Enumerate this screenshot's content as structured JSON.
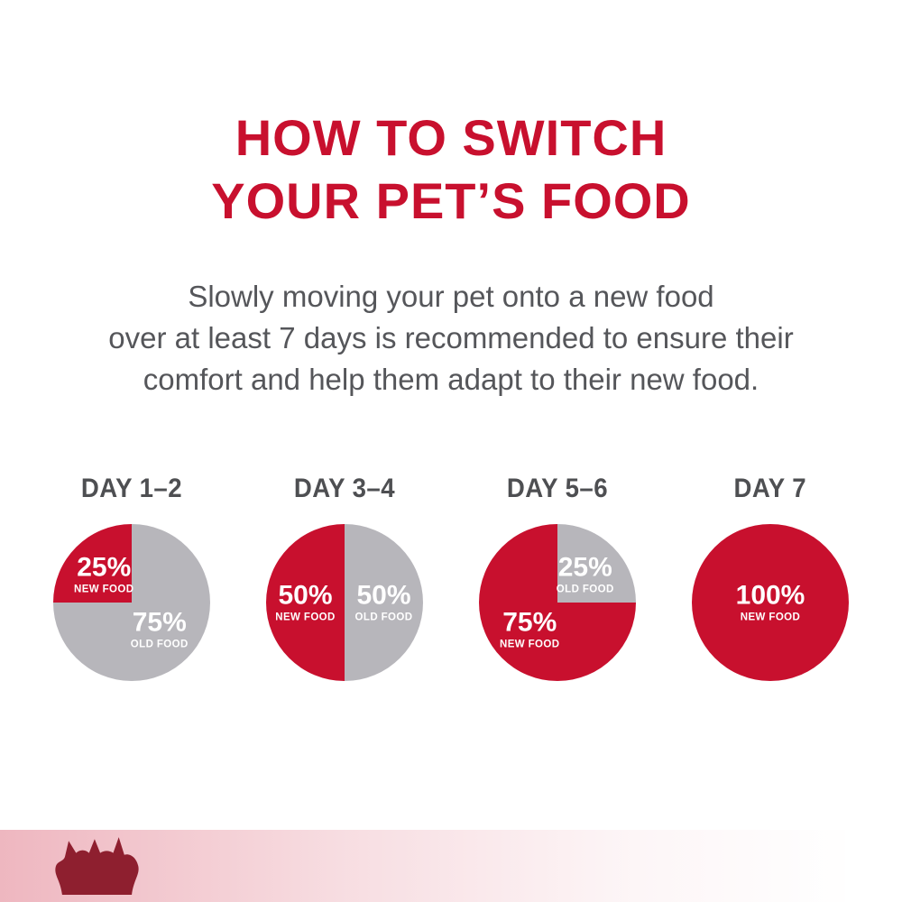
{
  "title": {
    "line1": "HOW TO SWITCH",
    "line2": "YOUR PET’S FOOD"
  },
  "subtitle": {
    "lines": [
      "Slowly moving your pet onto a new food",
      "over at least 7 days is recommended to ensure their",
      "comfort and help them adapt to their new food."
    ]
  },
  "colors": {
    "brand_red": "#c8102e",
    "pie_gray": "#b7b6bb",
    "text_gray": "#55565a",
    "day_label_gray": "#4e4f52",
    "logo_red": "#8e1f2f",
    "pie_label_white": "#ffffff"
  },
  "chart_data": [
    {
      "type": "pie",
      "title": "DAY 1–2",
      "labels": [
        "OLD FOOD",
        "NEW FOOD"
      ],
      "values": [
        75,
        25
      ],
      "segments": [
        {
          "name": "OLD FOOD",
          "value": 75,
          "color": "#b7b6bb",
          "label_value": "75%",
          "label_name": "OLD FOOD",
          "label_color": "#ffffff"
        },
        {
          "name": "NEW FOOD",
          "value": 25,
          "color": "#c8102e",
          "label_value": "25%",
          "label_name": "NEW FOOD",
          "label_color": "#ffffff"
        }
      ]
    },
    {
      "type": "pie",
      "title": "DAY 3–4",
      "labels": [
        "OLD FOOD",
        "NEW FOOD"
      ],
      "values": [
        50,
        50
      ],
      "segments": [
        {
          "name": "OLD FOOD",
          "value": 50,
          "color": "#b7b6bb",
          "label_value": "50%",
          "label_name": "OLD FOOD",
          "label_color": "#ffffff"
        },
        {
          "name": "NEW FOOD",
          "value": 50,
          "color": "#c8102e",
          "label_value": "50%",
          "label_name": "NEW FOOD",
          "label_color": "#ffffff"
        }
      ]
    },
    {
      "type": "pie",
      "title": "DAY 5–6",
      "labels": [
        "OLD FOOD",
        "NEW FOOD"
      ],
      "values": [
        25,
        75
      ],
      "segments": [
        {
          "name": "OLD FOOD",
          "value": 25,
          "color": "#b7b6bb",
          "label_value": "25%",
          "label_name": "OLD FOOD",
          "label_color": "#ffffff"
        },
        {
          "name": "NEW FOOD",
          "value": 75,
          "color": "#c8102e",
          "label_value": "75%",
          "label_name": "NEW FOOD",
          "label_color": "#ffffff"
        }
      ]
    },
    {
      "type": "pie",
      "title": "DAY 7",
      "labels": [
        "NEW FOOD"
      ],
      "values": [
        100
      ],
      "segments": [
        {
          "name": "NEW FOOD",
          "value": 100,
          "color": "#c8102e",
          "label_value": "100%",
          "label_name": "NEW FOOD",
          "label_color": "#ffffff"
        }
      ]
    }
  ],
  "footer": {
    "logo_icon": "royal-canin-crest-logo"
  }
}
